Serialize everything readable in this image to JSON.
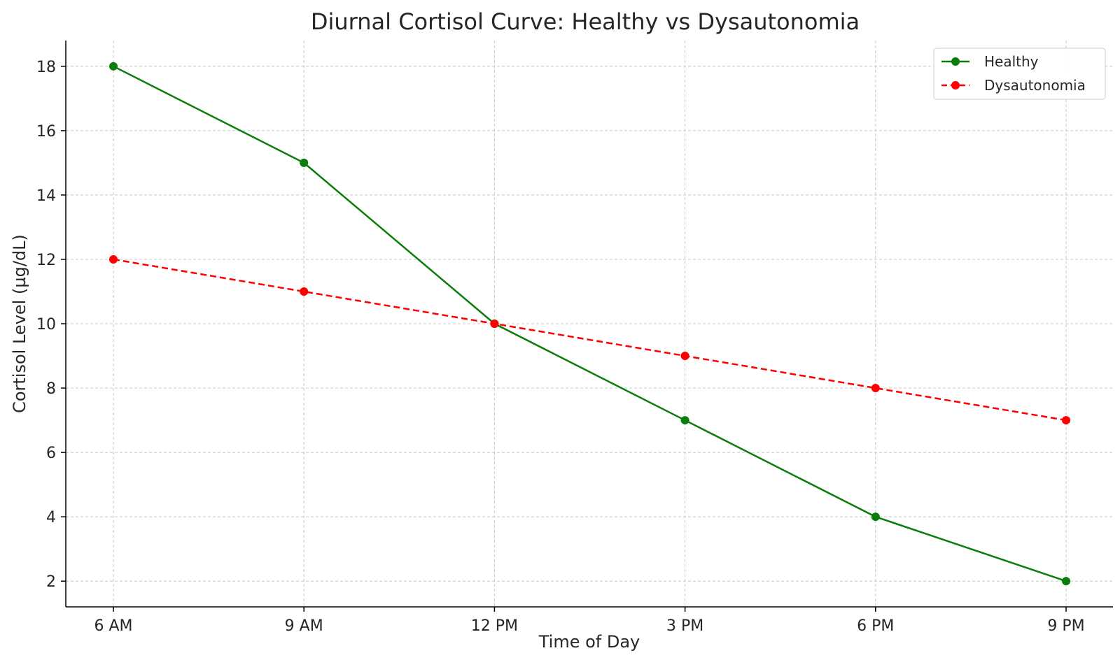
{
  "chart_data": {
    "type": "line",
    "title": "Diurnal Cortisol Curve: Healthy vs Dysautonomia",
    "xlabel": "Time of Day",
    "ylabel": "Cortisol Level (µg/dL)",
    "categories": [
      "6 AM",
      "9 AM",
      "12 PM",
      "3 PM",
      "6 PM",
      "9 PM"
    ],
    "yticks": [
      2,
      4,
      6,
      8,
      10,
      12,
      14,
      16,
      18
    ],
    "ylim": [
      1.2,
      18.8
    ],
    "grid": true,
    "legend_position": "top-right",
    "series": [
      {
        "name": "Healthy",
        "values": [
          18,
          15,
          10,
          7,
          4,
          2
        ],
        "color": "#0a7d0a",
        "line_style": "solid",
        "marker": "circle"
      },
      {
        "name": "Dysautonomia",
        "values": [
          12,
          11,
          10,
          9,
          8,
          7
        ],
        "color": "#ff0000",
        "line_style": "dashed",
        "marker": "circle"
      }
    ]
  }
}
